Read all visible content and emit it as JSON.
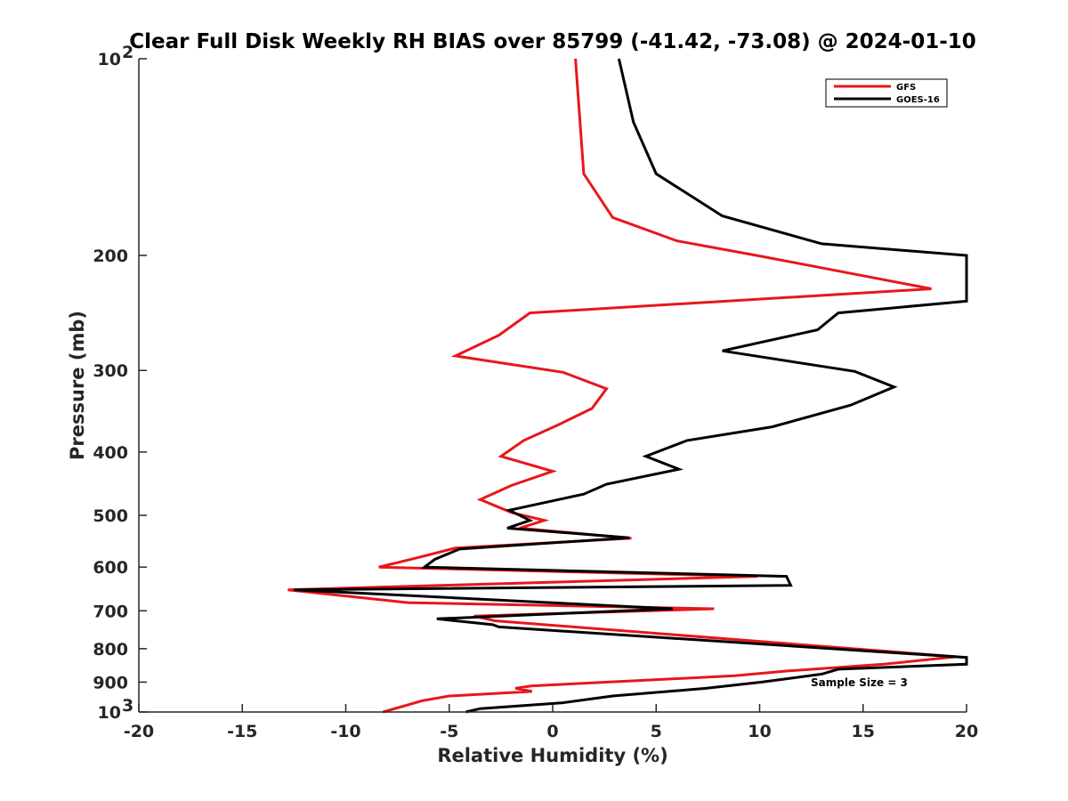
{
  "chart_data": {
    "type": "line",
    "title": "Clear Full Disk Weekly RH BIAS over 85799 (-41.42, -73.08) @ 2024-01-10",
    "xlabel": "Relative Humidity (%)",
    "ylabel": "Pressure (mb)",
    "xlim": [
      -20,
      20
    ],
    "ylim": [
      1000,
      100
    ],
    "y_scale": "log",
    "x_ticks": [
      "-20",
      "-15",
      "-10",
      "-5",
      "0",
      "5",
      "10",
      "15",
      "20"
    ],
    "y_tick_labels": [
      {
        "p": 100,
        "base": "10",
        "exp": "2"
      },
      {
        "p": 200,
        "base": "200",
        "exp": ""
      },
      {
        "p": 300,
        "base": "300",
        "exp": ""
      },
      {
        "p": 400,
        "base": "400",
        "exp": ""
      },
      {
        "p": 500,
        "base": "500",
        "exp": ""
      },
      {
        "p": 600,
        "base": "600",
        "exp": ""
      },
      {
        "p": 700,
        "base": "700",
        "exp": ""
      },
      {
        "p": 800,
        "base": "800",
        "exp": ""
      },
      {
        "p": 900,
        "base": "900",
        "exp": ""
      },
      {
        "p": 1000,
        "base": "10",
        "exp": "3"
      }
    ],
    "grid": false,
    "legend_position": "top-right",
    "annotation": "Sample Size = 3",
    "series": [
      {
        "name": "GFS",
        "color": "#e8161b",
        "points": [
          [
            1.1,
            100
          ],
          [
            1.5,
            150
          ],
          [
            2.9,
            175
          ],
          [
            6.0,
            190
          ],
          [
            10.2,
            201
          ],
          [
            18.3,
            225
          ],
          [
            -1.1,
            245
          ],
          [
            -2.6,
            265
          ],
          [
            -4.7,
            285
          ],
          [
            0.5,
            302
          ],
          [
            2.6,
            320
          ],
          [
            1.9,
            343
          ],
          [
            0.3,
            363
          ],
          [
            -1.4,
            384
          ],
          [
            -2.5,
            406
          ],
          [
            0.0,
            428
          ],
          [
            -2.0,
            450
          ],
          [
            -3.5,
            473
          ],
          [
            -2.0,
            495
          ],
          [
            -0.4,
            509
          ],
          [
            -1.6,
            523
          ],
          [
            3.8,
            542
          ],
          [
            -4.7,
            561
          ],
          [
            -6.5,
            580
          ],
          [
            -8.4,
            600
          ],
          [
            9.9,
            620
          ],
          [
            -12.8,
            650
          ],
          [
            -7.0,
            680
          ],
          [
            7.8,
            695
          ],
          [
            -3.8,
            713
          ],
          [
            -2.8,
            725
          ],
          [
            19.5,
            823
          ],
          [
            16.0,
            845
          ],
          [
            11.4,
            865
          ],
          [
            8.8,
            880
          ],
          [
            -1.0,
            912
          ],
          [
            -1.8,
            920
          ],
          [
            -1.0,
            930
          ],
          [
            -5.0,
            945
          ],
          [
            -6.3,
            961
          ],
          [
            -8.2,
            1000
          ]
        ]
      },
      {
        "name": "GOES-16",
        "color": "#000000",
        "points": [
          [
            3.2,
            100
          ],
          [
            3.9,
            125
          ],
          [
            5.0,
            150
          ],
          [
            8.2,
            174
          ],
          [
            13.0,
            192
          ],
          [
            20.0,
            200
          ],
          [
            20.0,
            235
          ],
          [
            13.8,
            245
          ],
          [
            12.8,
            260
          ],
          [
            8.2,
            280
          ],
          [
            14.6,
            301
          ],
          [
            16.5,
            318
          ],
          [
            14.4,
            339
          ],
          [
            10.6,
            366
          ],
          [
            6.5,
            384
          ],
          [
            4.5,
            406
          ],
          [
            6.1,
            425
          ],
          [
            2.6,
            448
          ],
          [
            1.5,
            464
          ],
          [
            -2.1,
            491
          ],
          [
            -1.1,
            509
          ],
          [
            -2.2,
            523
          ],
          [
            3.7,
            541
          ],
          [
            -4.5,
            563
          ],
          [
            -5.7,
            584
          ],
          [
            -6.2,
            600
          ],
          [
            11.3,
            620
          ],
          [
            11.5,
            640
          ],
          [
            -12.5,
            650
          ],
          [
            5.8,
            695
          ],
          [
            -5.6,
            720
          ],
          [
            -2.9,
            735
          ],
          [
            -2.6,
            741
          ],
          [
            20.0,
            825
          ],
          [
            20.0,
            845
          ],
          [
            13.8,
            860
          ],
          [
            13.0,
            875
          ],
          [
            10.1,
            900
          ],
          [
            7.4,
            920
          ],
          [
            2.9,
            945
          ],
          [
            0.5,
            968
          ],
          [
            -3.5,
            988
          ],
          [
            -4.2,
            1000
          ]
        ]
      }
    ]
  }
}
